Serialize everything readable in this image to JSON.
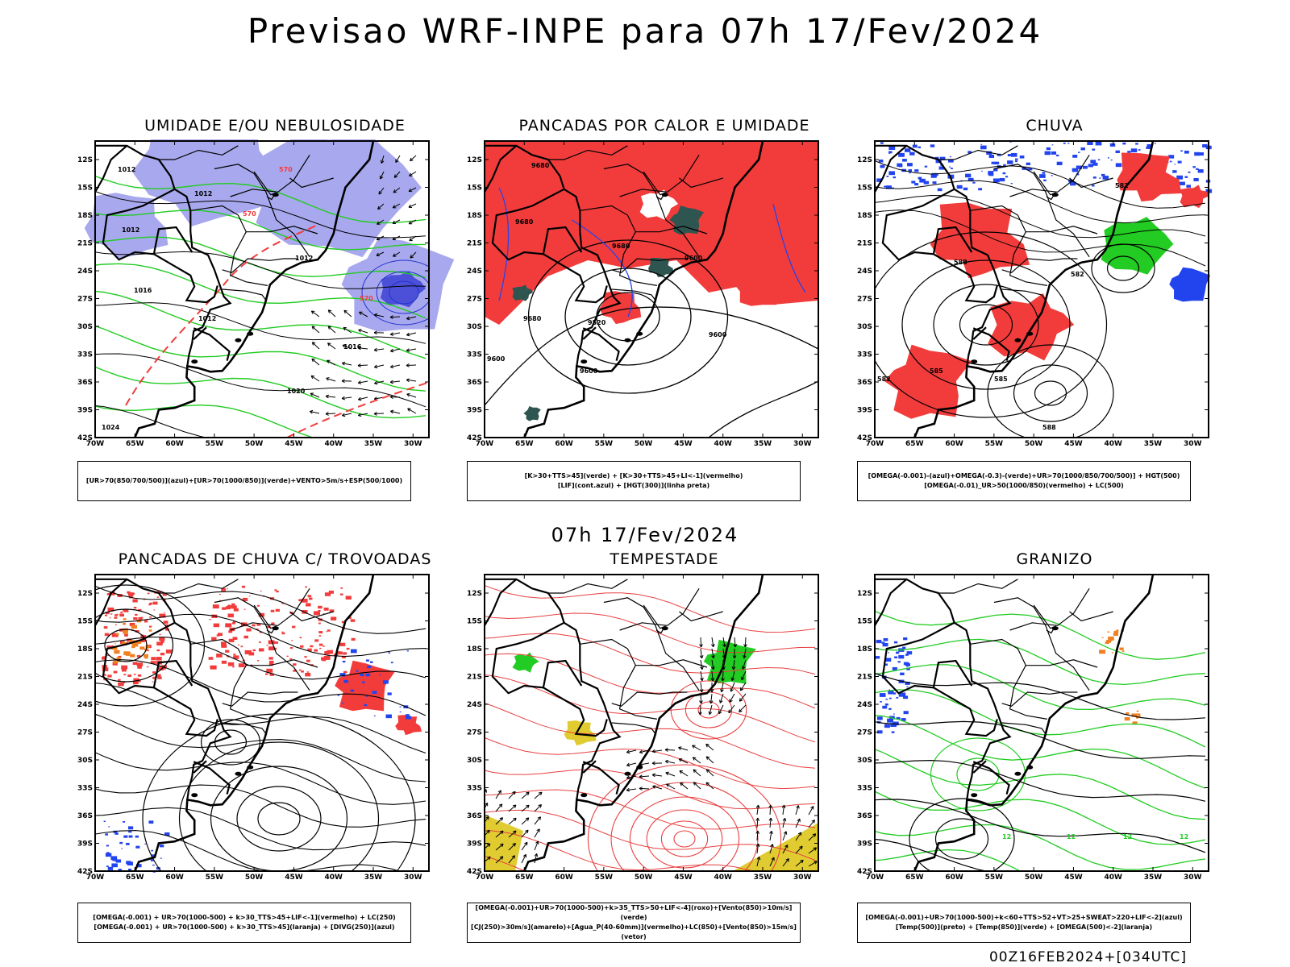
{
  "title": "Previsao WRF-INPE  para 07h 17/Fev/2024",
  "subtitle": "07h 17/Fev/2024",
  "footer": "00Z16FEB2024+[034UTC]",
  "lat_labels": [
    "12S",
    "15S",
    "18S",
    "21S",
    "24S",
    "27S",
    "30S",
    "33S",
    "36S",
    "39S",
    "42S"
  ],
  "lon_labels": [
    "70W",
    "65W",
    "60W",
    "55W",
    "50W",
    "45W",
    "40W",
    "35W",
    "30W"
  ],
  "colors": {
    "red": "#f23c3c",
    "green": "#22cc22",
    "blue": "#2244ee",
    "lilac": "#a8a8ee",
    "darkteal": "#2f5550",
    "yellow": "#e0cc30",
    "orange": "#f08020",
    "purple": "#8844cc"
  },
  "panels": [
    {
      "id": "umidade",
      "title": "UMIDADE E/OU NEBULOSIDADE",
      "legend": [
        "[UR>70(850/700/500)](azul)+[UR>70(1000/850)](verde)+VENTO>5m/s+ESP(500/1000)"
      ],
      "contour_labels": [
        "1012",
        "1012",
        "1012",
        "1016",
        "1012",
        "1012",
        "1016",
        "1020",
        "1024",
        "570",
        "570",
        "570"
      ]
    },
    {
      "id": "pancadas-calor",
      "title": "PANCADAS POR CALOR E UMIDADE",
      "legend": [
        "[K>30+TTS>45](verde) + [K>30+TTS>45+LI<-1](vermelho)",
        "[LIF](cont.azul) + [HGT(300)](linha preta)"
      ],
      "contour_labels": [
        "9680",
        "9680",
        "9680",
        "9600",
        "9520",
        "9600",
        "9600",
        "9600",
        "9680"
      ]
    },
    {
      "id": "chuva",
      "title": "CHUVA",
      "legend": [
        "[OMEGA(-0.001)-(azul)+OMEGA(-0.3)-(verde)+UR>70(1000/850/700/500)] + HGT(500)",
        "[OMEGA(-0.01)_UR>50(1000/850)(vermelho) + LC(500)"
      ],
      "contour_labels": [
        "588",
        "582",
        "582",
        "585",
        "585",
        "588",
        "582"
      ]
    },
    {
      "id": "trovoadas",
      "title": "PANCADAS DE CHUVA C/ TROVOADAS",
      "legend": [
        "[OMEGA(-0.001) + UR>70(1000-500) + k>30_TTS>45+LIF<-1](vermelho) + LC(250)",
        "[OMEGA(-0.001) + UR>70(1000-500) + k>30_TTS>45](laranja) + [DIVG(250)](azul)"
      ],
      "contour_labels": []
    },
    {
      "id": "tempestade",
      "title": "TEMPESTADE",
      "legend": [
        "[OMEGA(-0.001)+UR>70(1000-500)+k>35_TTS>50+LIF<-4](roxo)+[Vento(850)>10m/s](verde)",
        "[CJ(250)>30m/s](amarelo)+[Agua_P(40-60mm)](vermelho)+LC(850)+[Vento(850)>15m/s](vetor)"
      ],
      "contour_labels": []
    },
    {
      "id": "granizo",
      "title": "GRANIZO",
      "legend": [
        "[OMEGA(-0.001)+UR>70(1000-500)+k<60+TTS>52+VT>25+SWEAT>220+LIF<-2](azul)",
        "[Temp(500)](preto) + [Temp(850)](verde) + [OMEGA(500)<-2](laranja)"
      ],
      "contour_labels": [
        "12",
        "12",
        "12",
        "12"
      ]
    }
  ]
}
